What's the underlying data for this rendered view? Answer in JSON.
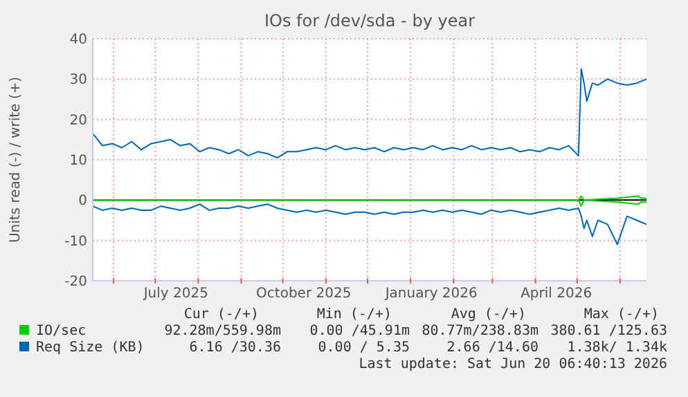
{
  "chart_data": {
    "type": "line",
    "title": "IOs for /dev/sda - by year",
    "ylabel": "Units read (-) / write (+)",
    "x": [
      "2025-05-17",
      "2025-05-24",
      "2025-05-31",
      "2025-06-07",
      "2025-06-14",
      "2025-06-21",
      "2025-06-28",
      "2025-07-05",
      "2025-07-12",
      "2025-07-19",
      "2025-07-26",
      "2025-08-02",
      "2025-08-09",
      "2025-08-16",
      "2025-08-23",
      "2025-08-30",
      "2025-09-06",
      "2025-09-13",
      "2025-09-20",
      "2025-09-27",
      "2025-10-04",
      "2025-10-11",
      "2025-10-18",
      "2025-10-25",
      "2025-11-01",
      "2025-11-08",
      "2025-11-15",
      "2025-11-22",
      "2025-11-29",
      "2025-12-06",
      "2025-12-13",
      "2025-12-20",
      "2025-12-27",
      "2026-01-03",
      "2026-01-10",
      "2026-01-17",
      "2026-01-24",
      "2026-01-31",
      "2026-02-07",
      "2026-02-14",
      "2026-02-21",
      "2026-02-28",
      "2026-03-07",
      "2026-03-14",
      "2026-03-21",
      "2026-03-28",
      "2026-04-04",
      "2026-04-11",
      "2026-04-18",
      "2026-04-25",
      "2026-05-02",
      "2026-05-04",
      "2026-05-06",
      "2026-05-08",
      "2026-05-12",
      "2026-05-16",
      "2026-05-23",
      "2026-05-30",
      "2026-06-06",
      "2026-06-13",
      "2026-06-20"
    ],
    "series": [
      {
        "name": "IO/sec",
        "color": "#00cc00",
        "x": [
          "2025-05-17",
          "2026-05-02",
          "2026-05-04",
          "2026-05-06",
          "2026-05-30",
          "2026-06-14",
          "2026-06-16",
          "2026-06-20"
        ],
        "values": [
          0,
          0,
          1,
          0,
          0.5,
          1,
          0.5,
          0.5
        ]
      },
      {
        "color": "#00cc00",
        "x": [
          "2025-05-17",
          "2026-05-02",
          "2026-05-04",
          "2026-05-06",
          "2026-05-30",
          "2026-06-14",
          "2026-06-16",
          "2026-06-20"
        ],
        "values": [
          0,
          0,
          -1.5,
          0,
          -0.5,
          -1,
          -0.5,
          -0.5
        ]
      },
      {
        "name": "Req Size (KB)",
        "color": "#0066b3",
        "values": [
          16.5,
          13.5,
          14,
          13,
          14.5,
          12.5,
          14,
          14.5,
          15,
          13.5,
          14,
          12,
          13,
          12.5,
          11.5,
          12.5,
          11,
          12,
          11.5,
          10.5,
          12,
          12,
          12.5,
          13,
          12.5,
          13.5,
          12.5,
          13,
          12.5,
          13,
          12,
          13,
          12.5,
          13,
          12.5,
          13.5,
          12.5,
          13,
          12.5,
          13.5,
          12.5,
          13,
          12.5,
          13,
          12,
          12.5,
          12,
          13,
          12.5,
          13.5,
          11,
          32.5,
          29,
          24.5,
          29,
          28.5,
          30,
          29,
          28.5,
          29,
          30
        ]
      },
      {
        "color": "#0066b3",
        "values": [
          -1.5,
          -2.5,
          -2,
          -2.5,
          -2,
          -2.5,
          -2.5,
          -1.5,
          -2,
          -2.5,
          -2,
          -1,
          -2.5,
          -2,
          -2,
          -1.5,
          -2,
          -1.5,
          -1,
          -2,
          -2.5,
          -3,
          -2.5,
          -3,
          -2.5,
          -3,
          -3.5,
          -3,
          -3,
          -3.5,
          -3,
          -3.5,
          -3,
          -3,
          -2.5,
          -3,
          -2.5,
          -3,
          -2.5,
          -3,
          -3.5,
          -2.5,
          -3,
          -2.5,
          -3,
          -3.5,
          -3,
          -2.5,
          -2,
          -2.5,
          -2,
          -4,
          -7,
          -5,
          -9,
          -5,
          -6,
          -11,
          -4,
          -5,
          -6
        ]
      }
    ],
    "xlim": [
      "2025-05-17",
      "2026-06-20"
    ],
    "xticks": [
      {
        "value": "2025-06-01",
        "label": null
      },
      {
        "value": "2025-07-01",
        "label": null
      },
      {
        "value": "2025-07-16",
        "label": "July 2025"
      },
      {
        "value": "2025-08-01",
        "label": null
      },
      {
        "value": "2025-09-01",
        "label": null
      },
      {
        "value": "2025-10-01",
        "label": null
      },
      {
        "value": "2025-10-16",
        "label": "October 2025"
      },
      {
        "value": "2025-11-01",
        "label": null
      },
      {
        "value": "2025-12-01",
        "label": null
      },
      {
        "value": "2026-01-01",
        "label": null
      },
      {
        "value": "2026-01-16",
        "label": "January 2026"
      },
      {
        "value": "2026-02-01",
        "label": null
      },
      {
        "value": "2026-03-01",
        "label": null
      },
      {
        "value": "2026-04-01",
        "label": null
      },
      {
        "value": "2026-04-16",
        "label": "April 2026"
      },
      {
        "value": "2026-05-01",
        "label": null
      },
      {
        "value": "2026-06-01",
        "label": null
      }
    ],
    "ylim": [
      -20,
      40
    ],
    "yticks": [
      -20,
      -10,
      0,
      10,
      20,
      30,
      40
    ],
    "ref_lines": [
      {
        "axis": "y",
        "value": 0,
        "color": "#000000"
      }
    ],
    "grid": true,
    "legend": "bottom",
    "annotations": [
      "Cur (-/+)",
      "Min (-/+)",
      "Avg (-/+)",
      "Max (-/+)",
      "92.28m/559.98m",
      "0.00 /45.91m",
      "80.77m/238.83m",
      "380.61 /125.63",
      "6.16 /30.36",
      "0.00 / 5.35",
      "2.66 /14.60",
      "1.38k/ 1.34k",
      "Last update: Sat Jun 20 06:40:13 2026"
    ]
  }
}
